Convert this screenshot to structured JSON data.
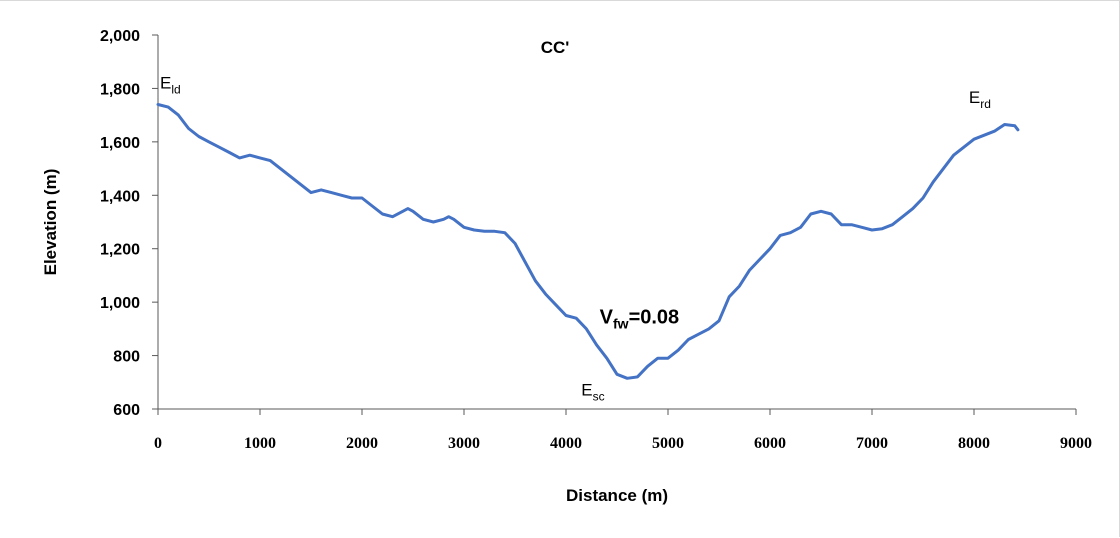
{
  "chart_data": {
    "type": "line",
    "title": "CC'",
    "xlabel": "Distance (m)",
    "ylabel": "Elevation (m)",
    "xlim": [
      0,
      9000
    ],
    "ylim": [
      600,
      2000
    ],
    "x_ticks": [
      "0",
      "1000",
      "2000",
      "3000",
      "4000",
      "5000",
      "6000",
      "7000",
      "8000",
      "9000"
    ],
    "y_ticks": [
      "600",
      "800",
      "1,000",
      "1,200",
      "1,400",
      "1,600",
      "1,800",
      "2,000"
    ],
    "grid": false,
    "legend": "none",
    "line_color": "#4472C4",
    "series": [
      {
        "x": [
          0,
          100,
          200,
          300,
          400,
          500,
          600,
          700,
          800,
          900,
          1000,
          1100,
          1200,
          1300,
          1400,
          1500,
          1600,
          1700,
          1800,
          1900,
          2000,
          2100,
          2200,
          2300,
          2400,
          2450,
          2500,
          2600,
          2700,
          2800,
          2850,
          2900,
          3000,
          3100,
          3200,
          3300,
          3400,
          3500,
          3600,
          3700,
          3800,
          3900,
          4000,
          4100,
          4200,
          4300,
          4400,
          4500,
          4600,
          4700,
          4800,
          4900,
          5000,
          5100,
          5200,
          5300,
          5400,
          5500,
          5600,
          5700,
          5800,
          5900,
          6000,
          6100,
          6200,
          6300,
          6400,
          6500,
          6600,
          6700,
          6800,
          6900,
          7000,
          7100,
          7200,
          7300,
          7400,
          7500,
          7600,
          7700,
          7800,
          7900,
          8000,
          8100,
          8200,
          8300,
          8400,
          8430
        ],
        "y": [
          1740,
          1730,
          1700,
          1650,
          1620,
          1600,
          1580,
          1560,
          1540,
          1550,
          1540,
          1530,
          1500,
          1470,
          1440,
          1410,
          1420,
          1410,
          1400,
          1390,
          1390,
          1360,
          1330,
          1320,
          1340,
          1350,
          1340,
          1310,
          1300,
          1310,
          1320,
          1310,
          1280,
          1270,
          1265,
          1265,
          1260,
          1220,
          1150,
          1080,
          1030,
          990,
          950,
          940,
          900,
          840,
          790,
          730,
          715,
          720,
          760,
          790,
          790,
          820,
          860,
          880,
          900,
          930,
          1020,
          1060,
          1120,
          1160,
          1200,
          1250,
          1260,
          1280,
          1330,
          1340,
          1330,
          1290,
          1290,
          1280,
          1270,
          1275,
          1290,
          1320,
          1350,
          1390,
          1450,
          1500,
          1550,
          1580,
          1610,
          1625,
          1640,
          1665,
          1660,
          1645
        ]
      }
    ],
    "annotations": [
      {
        "base": "E",
        "sub": "ld",
        "x": 20,
        "y": 1800
      },
      {
        "base": "E",
        "sub": "rd",
        "x": 7950,
        "y": 1745
      },
      {
        "base": "E",
        "sub": "sc",
        "x": 4150,
        "y": 650
      },
      {
        "base": "V",
        "sub": "fw",
        "suffix": "=0.08",
        "x": 4330,
        "y": 920
      }
    ]
  }
}
